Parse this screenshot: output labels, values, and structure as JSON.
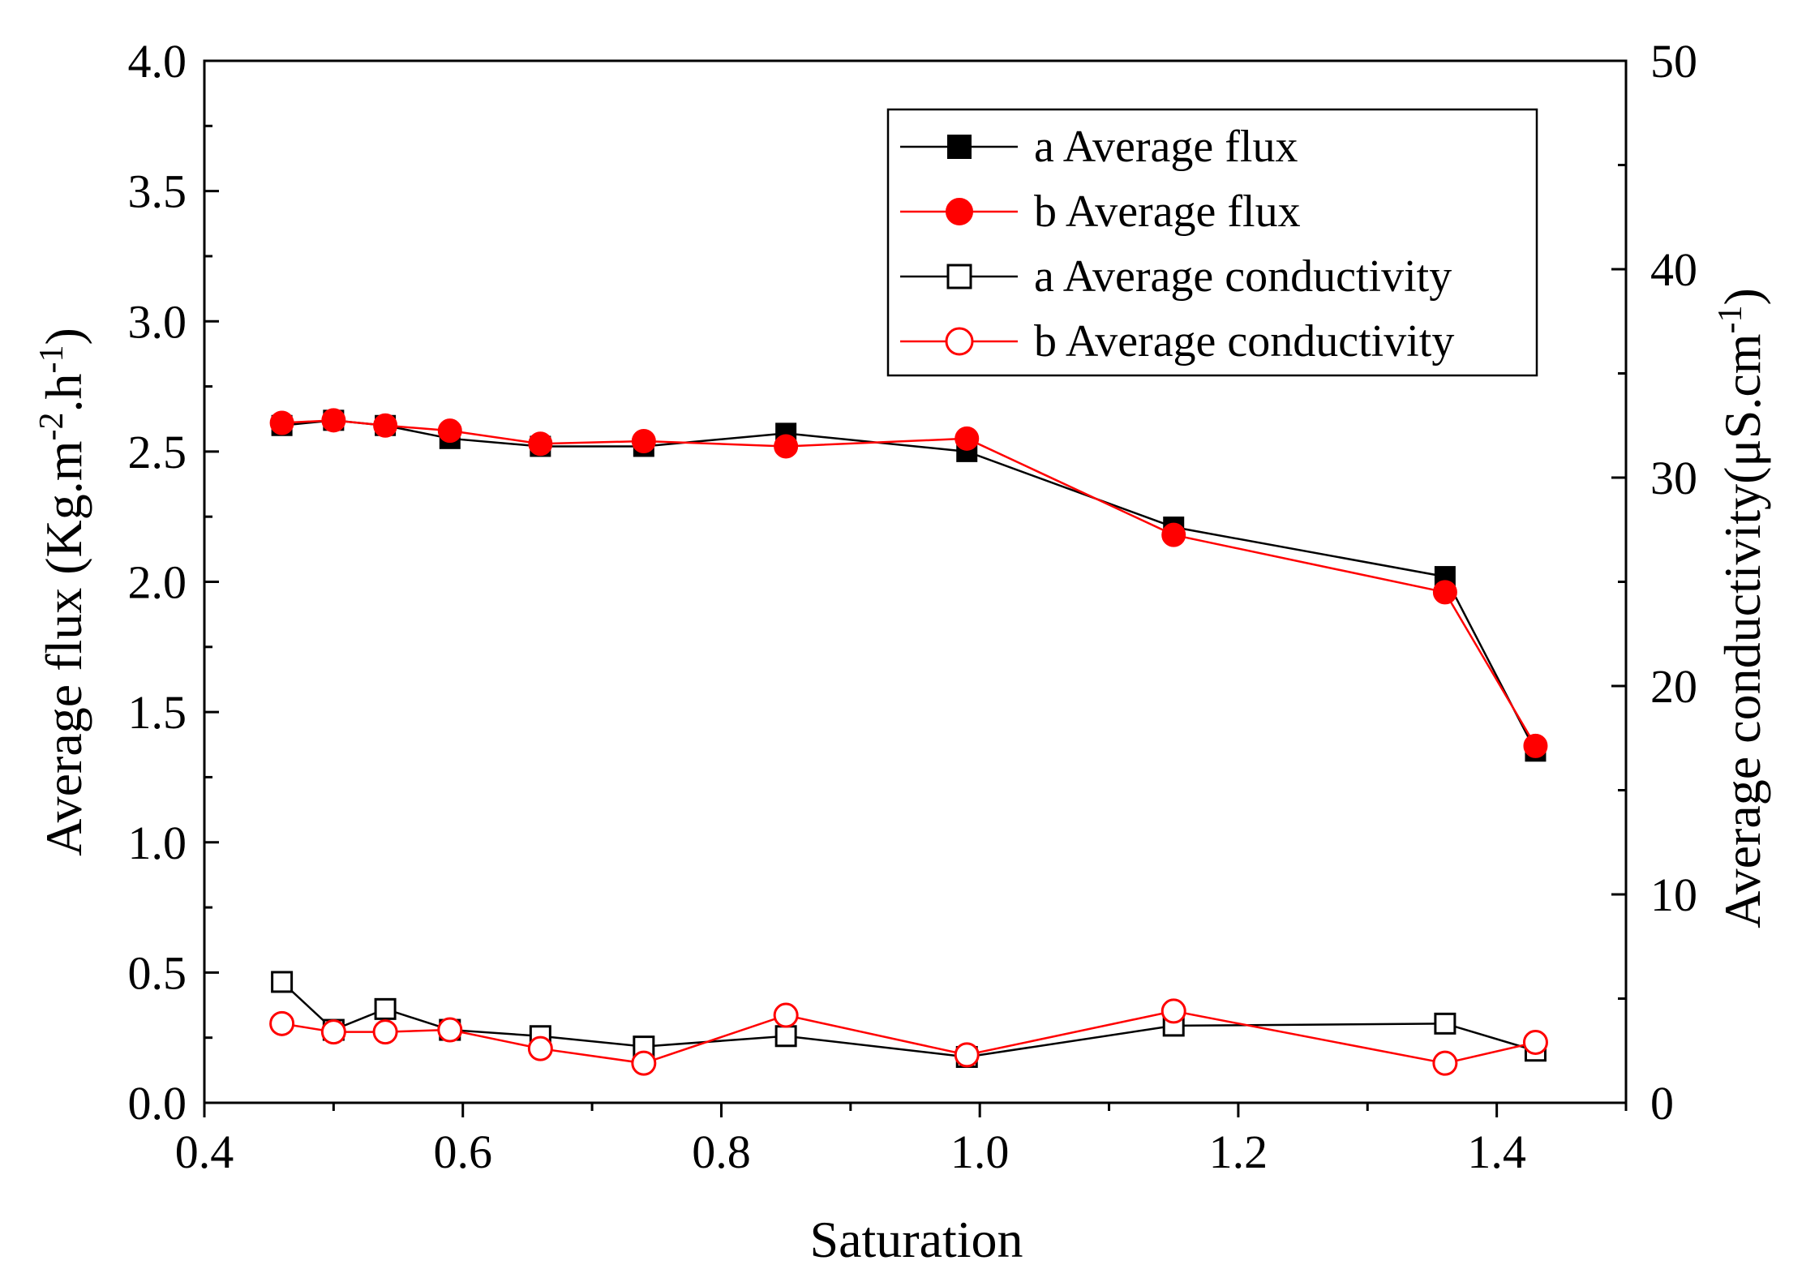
{
  "chart_data": {
    "type": "line",
    "title": "",
    "xlabel": "Saturation",
    "ylabel_left": "Average flux (Kg.m-2.h-1)",
    "ylabel_right": "Average conductivity(μS.cm-1)",
    "xlim": [
      0.4,
      1.5
    ],
    "ylim_left": [
      0.0,
      4.0
    ],
    "ylim_right": [
      0,
      50
    ],
    "x_ticks": [
      0.4,
      0.6,
      0.8,
      1.0,
      1.2,
      1.4
    ],
    "x_tick_labels": [
      "0.4",
      "0.6",
      "0.8",
      "1.0",
      "1.2",
      "1.4"
    ],
    "y_left_ticks": [
      0.0,
      0.5,
      1.0,
      1.5,
      2.0,
      2.5,
      3.0,
      3.5,
      4.0
    ],
    "y_left_tick_labels": [
      "0.0",
      "0.5",
      "1.0",
      "1.5",
      "2.0",
      "2.5",
      "3.0",
      "3.5",
      "4.0"
    ],
    "y_right_ticks": [
      0,
      10,
      20,
      30,
      40,
      50
    ],
    "y_right_tick_labels": [
      "0",
      "10",
      "20",
      "30",
      "40",
      "50"
    ],
    "grid": false,
    "legend_position": "top-right",
    "x": [
      0.46,
      0.5,
      0.54,
      0.59,
      0.66,
      0.74,
      0.85,
      0.99,
      1.15,
      1.36,
      1.43
    ],
    "series": [
      {
        "name": "a Average flux",
        "axis": "left",
        "color": "#000000",
        "marker": "square-filled",
        "values": [
          2.6,
          2.62,
          2.6,
          2.55,
          2.52,
          2.52,
          2.57,
          2.5,
          2.21,
          2.02,
          1.35
        ]
      },
      {
        "name": "b Average flux",
        "axis": "left",
        "color": "#ff0000",
        "marker": "circle-filled",
        "values": [
          2.61,
          2.62,
          2.6,
          2.58,
          2.53,
          2.54,
          2.52,
          2.55,
          2.18,
          1.96,
          1.37
        ]
      },
      {
        "name": "a Average conductivity",
        "axis": "right",
        "color": "#000000",
        "marker": "square-open",
        "values": [
          5.8,
          3.5,
          4.5,
          3.5,
          3.2,
          2.7,
          3.2,
          2.2,
          3.7,
          3.8,
          2.5
        ]
      },
      {
        "name": "b Average conductivity",
        "axis": "right",
        "color": "#ff0000",
        "marker": "circle-open",
        "values": [
          3.8,
          3.4,
          3.4,
          3.5,
          2.6,
          1.9,
          4.2,
          2.3,
          4.4,
          1.9,
          2.9
        ]
      }
    ]
  },
  "axis_title_parts": {
    "left_prefix": "Average flux (Kg.m",
    "left_sup1": "-2",
    "left_mid": ".h",
    "left_sup2": "-1",
    "left_suffix": ")",
    "right_prefix": "Average conductivity(μS.cm",
    "right_sup": "-1",
    "right_suffix": ")"
  }
}
